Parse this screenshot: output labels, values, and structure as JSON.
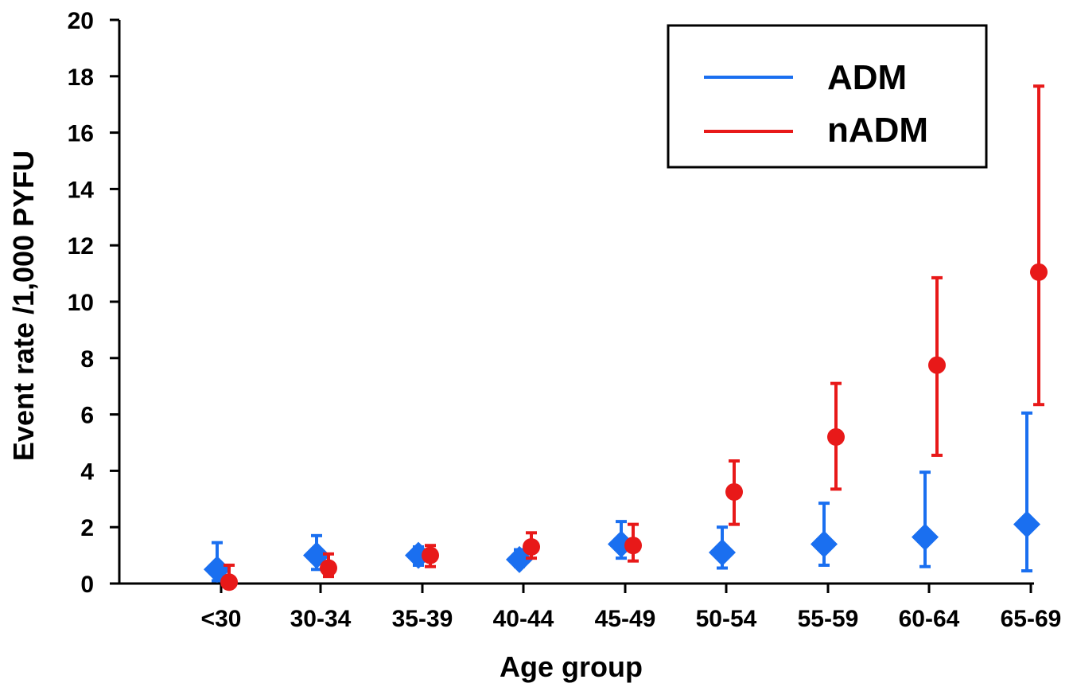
{
  "chart_data": {
    "type": "scatter",
    "title": "",
    "xlabel": "Age group",
    "ylabel": "Event rate /1,000 PYFU",
    "categories": [
      "<30",
      "30-34",
      "35-39",
      "40-44",
      "45-49",
      "50-54",
      "55-59",
      "60-64",
      "65-69"
    ],
    "ylim": [
      0,
      20
    ],
    "yticks": [
      "0",
      "2",
      "4",
      "6",
      "8",
      "10",
      "12",
      "14",
      "16",
      "18",
      "20"
    ],
    "grid": false,
    "legend_position": "top-right",
    "series": [
      {
        "name": "ADM",
        "color": "#1a6ff0",
        "marker": "diamond",
        "values": [
          0.5,
          1.0,
          1.0,
          0.85,
          1.4,
          1.1,
          1.4,
          1.65,
          2.1
        ],
        "upper": [
          1.45,
          1.7,
          1.3,
          1.2,
          2.2,
          2.0,
          2.85,
          3.95,
          6.05
        ],
        "lower": [
          0.1,
          0.5,
          0.65,
          0.6,
          0.9,
          0.55,
          0.65,
          0.6,
          0.45
        ]
      },
      {
        "name": "nADM",
        "color": "#e81919",
        "marker": "circle",
        "values": [
          0.05,
          0.55,
          1.0,
          1.3,
          1.35,
          3.25,
          5.2,
          7.75,
          11.05
        ],
        "upper": [
          0.65,
          1.05,
          1.35,
          1.8,
          2.1,
          4.35,
          7.1,
          10.85,
          17.65
        ],
        "lower": [
          0.0,
          0.25,
          0.6,
          0.9,
          0.8,
          2.1,
          3.35,
          4.55,
          6.35
        ]
      }
    ]
  }
}
